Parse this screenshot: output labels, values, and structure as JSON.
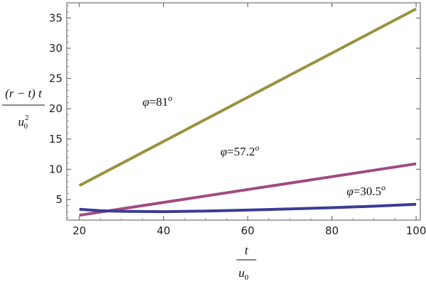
{
  "chart_data": {
    "type": "line",
    "xlabel_num": "t",
    "xlabel_den": "u",
    "xlabel_den_sub": "0",
    "ylabel_num": "(r − t) t",
    "ylabel_den": "u",
    "ylabel_den_sub": "0",
    "ylabel_den_sup": "2",
    "xlim": [
      17,
      101
    ],
    "ylim": [
      1.6,
      37.5
    ],
    "xticks": [
      20,
      40,
      60,
      80,
      100
    ],
    "yticks": [
      5,
      10,
      15,
      20,
      25,
      30,
      35
    ],
    "series": [
      {
        "color": "#99913f",
        "x": [
          20,
          100
        ],
        "y": [
          7.3,
          36.5
        ]
      },
      {
        "color": "#a04a83",
        "x": [
          20,
          100
        ],
        "y": [
          2.4,
          10.9
        ]
      },
      {
        "color": "#3b3b97",
        "x": [
          20,
          25,
          30,
          40,
          50,
          60,
          70,
          80,
          90,
          100
        ],
        "y": [
          3.4,
          3.15,
          3.05,
          3.0,
          3.1,
          3.25,
          3.45,
          3.65,
          3.9,
          4.2
        ]
      }
    ],
    "annotations": [
      {
        "symbol": "φ",
        "text": "=81",
        "sup": "o",
        "x": 35,
        "y": 20.5
      },
      {
        "symbol": "φ",
        "text": "=57.2",
        "sup": "o",
        "x": 53.5,
        "y": 12.3
      },
      {
        "symbol": "φ",
        "text": "=30.5",
        "sup": "o",
        "x": 83.5,
        "y": 5.7
      }
    ]
  }
}
